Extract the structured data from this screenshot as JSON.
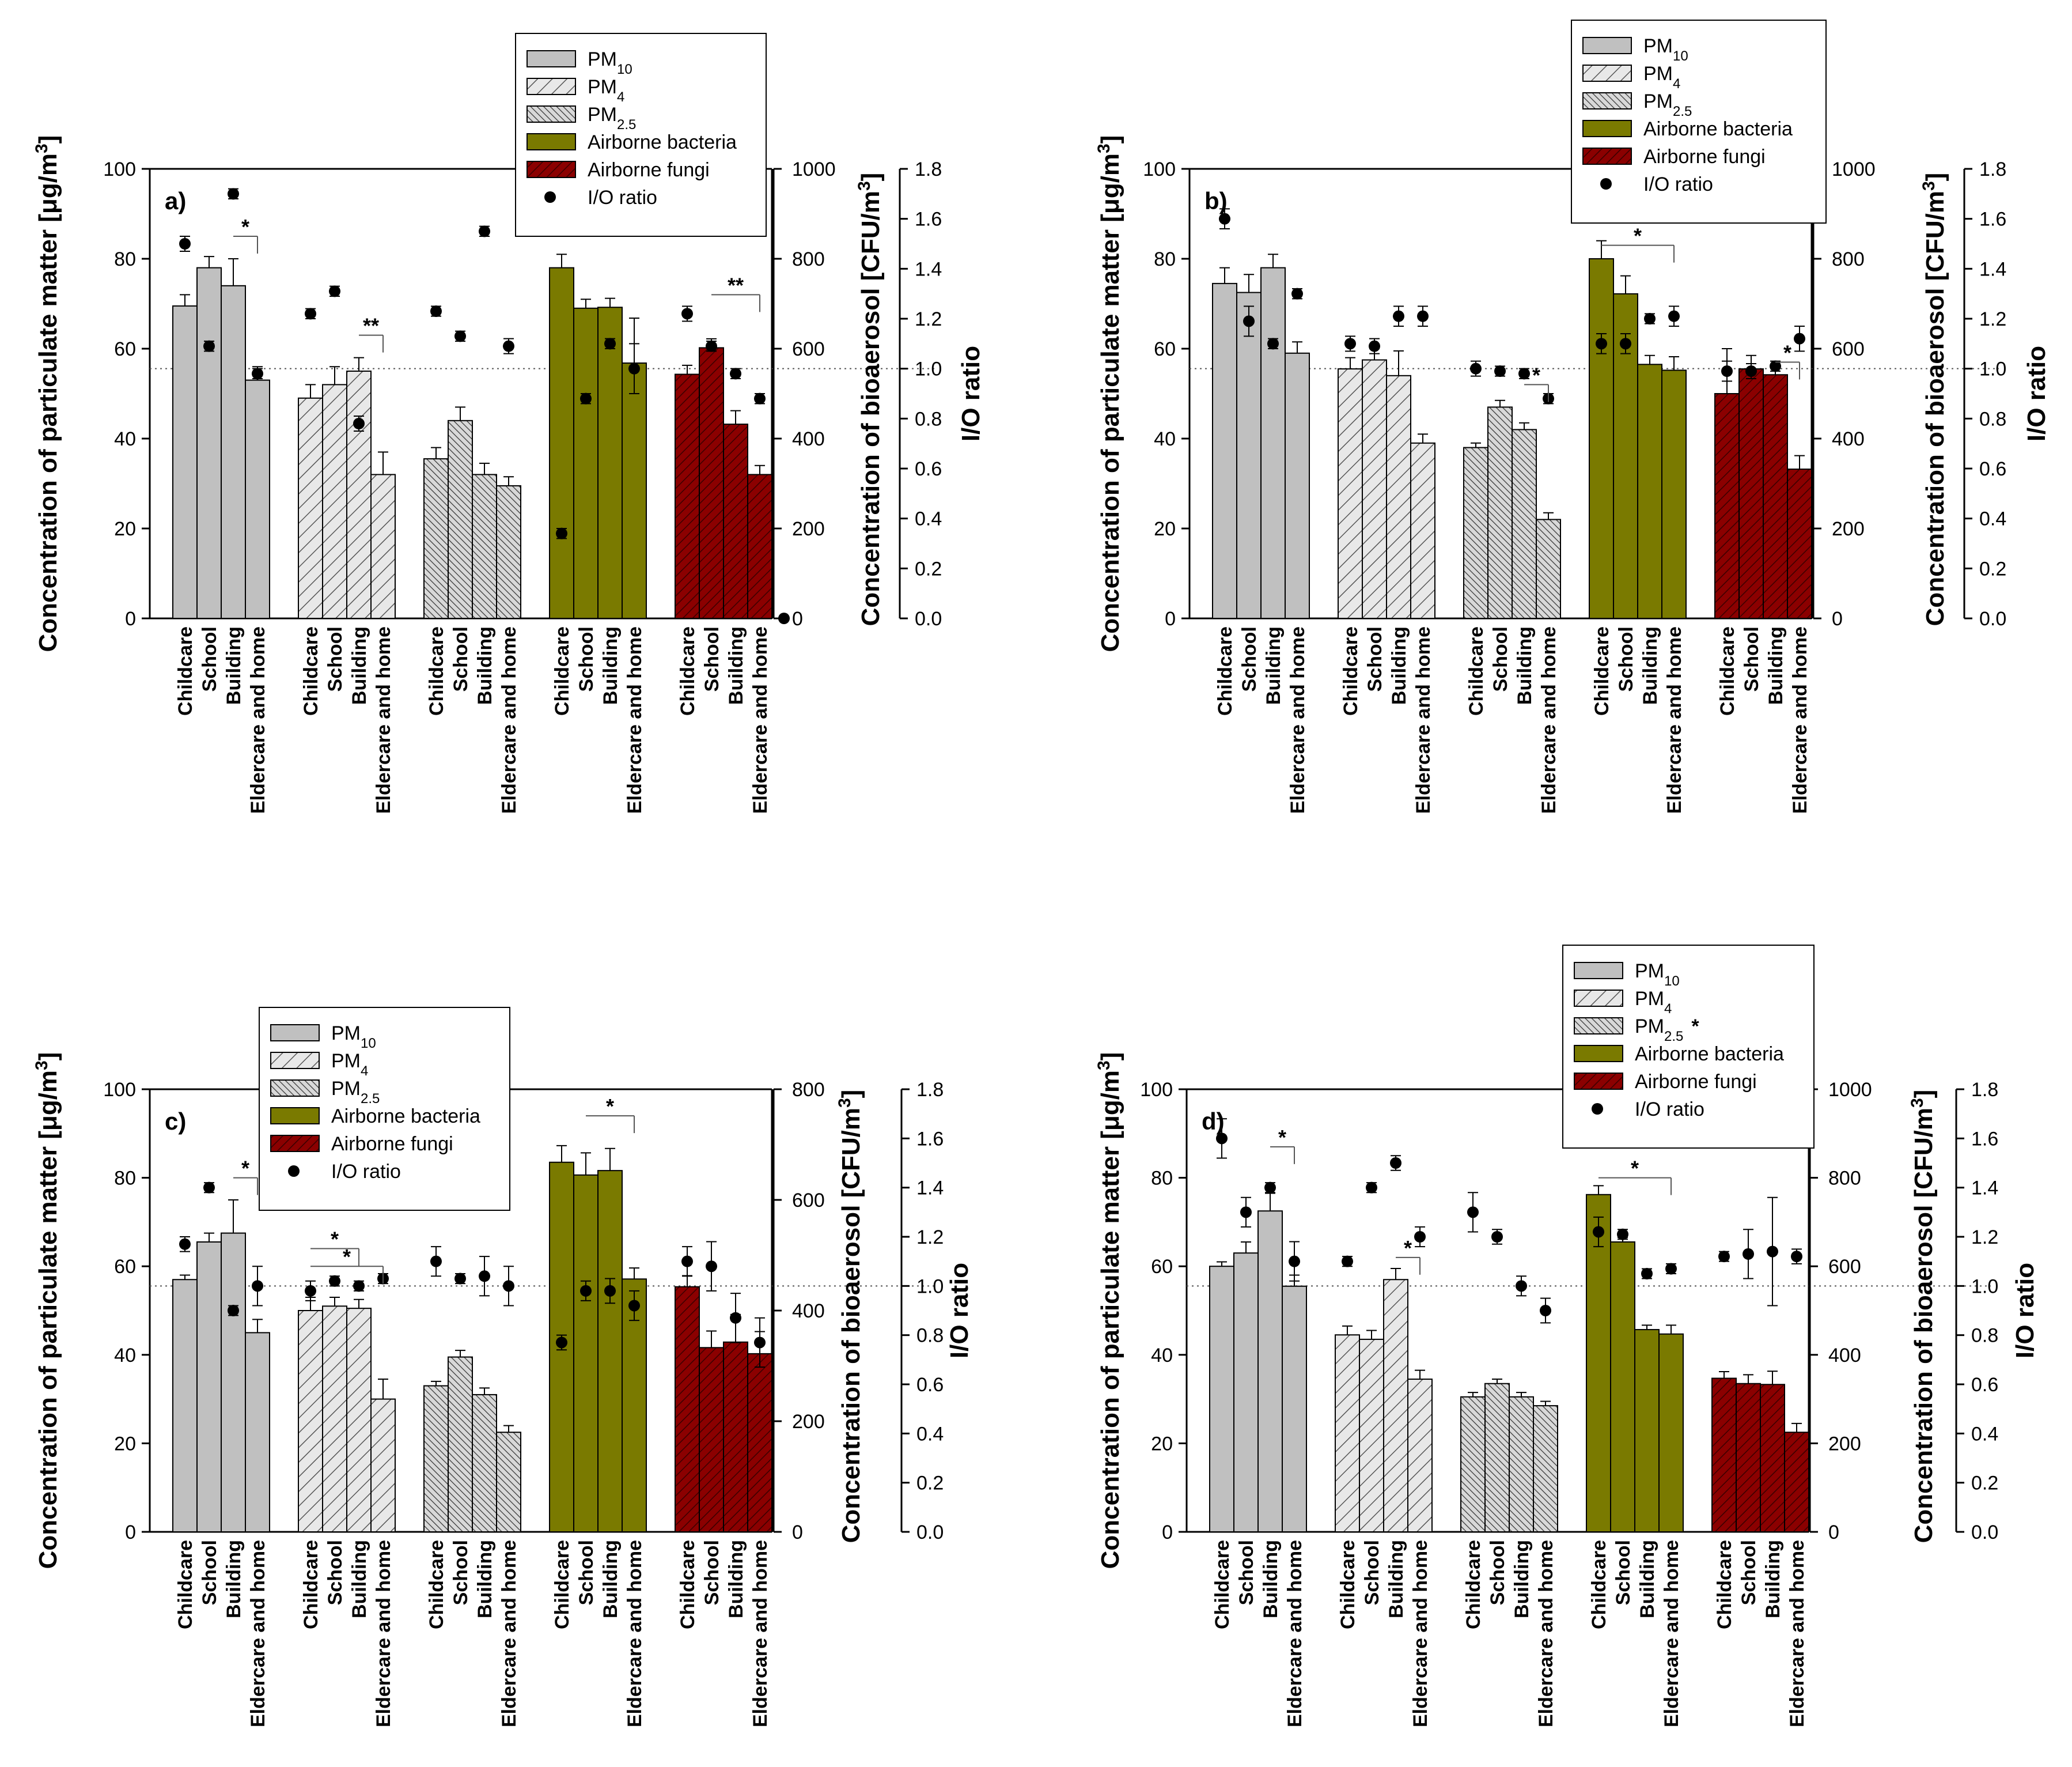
{
  "colors": {
    "pm10": "#c0c0c0",
    "bacteria": "#7a7a00",
    "fungi": "#8b0000",
    "hatch_fill": "#e8e8e8",
    "dot": "#000000"
  },
  "chart_data": [
    {
      "id": "a",
      "type": "bar",
      "panel_label": "a)",
      "categories": [
        "Childcare",
        "School",
        "Building",
        "Eldercare and home"
      ],
      "groups": [
        "PM10",
        "PM4",
        "PM2.5",
        "Airborne bacteria",
        "Airborne fungi"
      ],
      "left_axis": {
        "label_main": "Concentration of particulate matter [",
        "label_mu": "μ",
        "label_rest": "g/m",
        "label_sup": "3",
        "label_end": "]",
        "ticks": [
          "0",
          "20",
          "40",
          "60",
          "80",
          "100"
        ],
        "ylim": [
          0,
          100
        ]
      },
      "mid_axis": {
        "label_main": "Concentration of bioaerosol [CFU/m",
        "label_sup": "3",
        "label_end": "]",
        "ticks": [
          "0",
          "200",
          "400",
          "600",
          "800",
          "1000"
        ],
        "ylim": [
          0,
          1000
        ]
      },
      "right_axis": {
        "label": "I/O ratio",
        "ticks": [
          "0.0",
          "0.2",
          "0.4",
          "0.6",
          "0.8",
          "1.0",
          "1.2",
          "1.4",
          "1.6",
          "1.8"
        ],
        "ylim": [
          0,
          1.8
        ]
      },
      "legend": {
        "position": "top-center",
        "entries": [
          {
            "label": "PM",
            "sub": "10",
            "style": "pm10"
          },
          {
            "label": "PM",
            "sub": "4",
            "style": "pm4"
          },
          {
            "label": "PM",
            "sub": "2.5",
            "style": "pm25"
          },
          {
            "label": "Airborne bacteria",
            "sub": "",
            "style": "bacteria"
          },
          {
            "label": "Airborne fungi",
            "sub": "",
            "style": "fungi"
          },
          {
            "label": "I/O ratio",
            "sub": "",
            "style": "dot"
          }
        ]
      },
      "bars": [
        [
          69.5,
          78,
          74,
          53
        ],
        [
          49,
          52,
          55,
          32
        ],
        [
          35.5,
          44,
          32,
          29.5
        ],
        [
          780,
          690,
          692,
          568
        ],
        [
          543,
          602,
          432,
          320
        ]
      ],
      "errors": [
        [
          2.5,
          2.5,
          6,
          3
        ],
        [
          3,
          4,
          3,
          5
        ],
        [
          2.5,
          3,
          2.5,
          2
        ],
        [
          30,
          20,
          20,
          100
        ],
        [
          20,
          20,
          30,
          20
        ]
      ],
      "ratios": [
        [
          1.5,
          1.09,
          1.7,
          0.98
        ],
        [
          1.22,
          1.31,
          0.78,
          null
        ],
        [
          1.23,
          1.13,
          1.55,
          1.09
        ],
        [
          0.34,
          0.88,
          1.1,
          1.0
        ],
        [
          1.22,
          1.09,
          0.98,
          0.88
        ]
      ],
      "extra_ratios": [
        {
          "group": 4,
          "x_offset": 4.5,
          "value": 0.0
        }
      ],
      "ratio_errors": [
        [
          0.03,
          0.02,
          0.02,
          0.02
        ],
        [
          0.02,
          0.02,
          0.03,
          0.02
        ],
        [
          0.02,
          0.02,
          0.02,
          0.03
        ],
        [
          0.02,
          0.02,
          0.02,
          0.1
        ],
        [
          0.03,
          0.02,
          0.02,
          0.02
        ]
      ],
      "annotations": [
        {
          "text": "*",
          "group": 0,
          "from": 2,
          "to": 3,
          "y": 85
        },
        {
          "text": "**",
          "group": 1,
          "from": 2,
          "to": 3,
          "y": 63
        },
        {
          "text": "**",
          "group": 4,
          "from": 1,
          "to": 3,
          "y": 72
        }
      ]
    },
    {
      "id": "b",
      "type": "bar",
      "panel_label": "b)",
      "categories": [
        "Childcare",
        "School",
        "Building",
        "Eldercare and home"
      ],
      "groups": [
        "PM10",
        "PM4",
        "PM2.5",
        "Airborne bacteria",
        "Airborne fungi"
      ],
      "left_axis": {
        "label_main": "Concentration of particulate matter [",
        "label_mu": "μ",
        "label_rest": "g/m",
        "label_sup": "3",
        "label_end": "]",
        "ticks": [
          "0",
          "20",
          "40",
          "60",
          "80",
          "100"
        ],
        "ylim": [
          0,
          100
        ]
      },
      "mid_axis": {
        "label_main": "Concentration of bioaerosol [CFU/m",
        "label_sup": "3",
        "label_end": "]",
        "ticks": [
          "0",
          "200",
          "400",
          "600",
          "800",
          "1000"
        ],
        "ylim": [
          0,
          1000
        ]
      },
      "right_axis": {
        "label": "I/O ratio",
        "ticks": [
          "0.0",
          "0.2",
          "0.4",
          "0.6",
          "0.8",
          "1.0",
          "1.2",
          "1.4",
          "1.6",
          "1.8"
        ],
        "ylim": [
          0,
          1.8
        ]
      },
      "legend": {
        "position": "top-center",
        "entries": [
          {
            "label": "PM",
            "sub": "10",
            "style": "pm10"
          },
          {
            "label": "PM",
            "sub": "4",
            "style": "pm4"
          },
          {
            "label": "PM",
            "sub": "2.5",
            "style": "pm25"
          },
          {
            "label": "Airborne bacteria",
            "sub": "",
            "style": "bacteria"
          },
          {
            "label": "Airborne fungi",
            "sub": "",
            "style": "fungi"
          },
          {
            "label": "I/O ratio",
            "sub": "",
            "style": "dot"
          }
        ]
      },
      "bars": [
        [
          74.5,
          72.5,
          78,
          59
        ],
        [
          55.5,
          57.5,
          54,
          39
        ],
        [
          38,
          47,
          42,
          22
        ],
        [
          800,
          722,
          565,
          552
        ],
        [
          500,
          555,
          542,
          332
        ]
      ],
      "errors": [
        [
          3.5,
          4,
          3,
          2.5
        ],
        [
          2.5,
          2.5,
          5.5,
          2
        ],
        [
          1,
          1.5,
          1.5,
          1.5
        ],
        [
          40,
          40,
          20,
          30
        ],
        [
          100,
          30,
          20,
          30
        ]
      ],
      "ratios": [
        [
          1.6,
          1.19,
          1.1,
          1.3
        ],
        [
          1.1,
          1.09,
          1.21,
          1.21
        ],
        [
          1.0,
          0.99,
          0.98,
          0.88
        ],
        [
          1.1,
          1.1,
          1.2,
          1.21
        ],
        [
          0.99,
          0.99,
          1.01,
          1.12
        ]
      ],
      "ratio_errors": [
        [
          0.04,
          0.06,
          0.02,
          0.02
        ],
        [
          0.03,
          0.03,
          0.04,
          0.04
        ],
        [
          0.03,
          0.02,
          0.02,
          0.02
        ],
        [
          0.04,
          0.04,
          0.02,
          0.04
        ],
        [
          0.04,
          0.03,
          0.02,
          0.05
        ]
      ],
      "annotations": [
        {
          "text": "*",
          "group": 3,
          "from": 0,
          "to": 3,
          "y": 83
        },
        {
          "text": "*",
          "group": 2,
          "from": 2,
          "to": 3,
          "y": 52
        },
        {
          "text": "*",
          "group": 4,
          "from": 2,
          "to": 3,
          "y": 57
        }
      ]
    },
    {
      "id": "c",
      "type": "bar",
      "panel_label": "c)",
      "categories": [
        "Childcare",
        "School",
        "Building",
        "Eldercare and home"
      ],
      "groups": [
        "PM10",
        "PM4",
        "PM2.5",
        "Airborne bacteria",
        "Airborne fungi"
      ],
      "left_axis": {
        "label_main": "Concentration of particulate matter [",
        "label_mu": "μ",
        "label_rest": "g/m",
        "label_sup": "3",
        "label_end": "]",
        "ticks": [
          "0",
          "20",
          "40",
          "60",
          "80",
          "100"
        ],
        "ylim": [
          0,
          100
        ]
      },
      "mid_axis": {
        "label_main": "Concentration of bioaerosol [CFU/m",
        "label_sup": "3",
        "label_end": "]",
        "ticks": [
          "0",
          "200",
          "400",
          "600",
          "800"
        ],
        "ylim": [
          0,
          800
        ]
      },
      "right_axis": {
        "label": "I/O ratio",
        "ticks": [
          "0.0",
          "0.2",
          "0.4",
          "0.6",
          "0.8",
          "1.0",
          "1.2",
          "1.4",
          "1.6",
          "1.8"
        ],
        "ylim": [
          0,
          1.8
        ]
      },
      "legend": {
        "position": "top-center",
        "entries": [
          {
            "label": "PM",
            "sub": "10",
            "style": "pm10"
          },
          {
            "label": "PM",
            "sub": "4",
            "style": "pm4"
          },
          {
            "label": "PM",
            "sub": "2.5",
            "style": "pm25"
          },
          {
            "label": "Airborne bacteria",
            "sub": "",
            "style": "bacteria"
          },
          {
            "label": "Airborne fungi",
            "sub": "",
            "style": "fungi"
          },
          {
            "label": "I/O ratio",
            "sub": "",
            "style": "dot"
          }
        ]
      },
      "bars": [
        [
          57,
          65.5,
          67.5,
          45
        ],
        [
          50,
          51,
          50.5,
          30
        ],
        [
          33,
          39.5,
          31,
          22.5
        ],
        [
          668,
          645,
          653,
          457
        ],
        [
          443,
          333,
          343,
          322
        ]
      ],
      "errors": [
        [
          1,
          2,
          7.5,
          3
        ],
        [
          3,
          2,
          2,
          4.5
        ],
        [
          1,
          1.5,
          1.5,
          1.5
        ],
        [
          30,
          40,
          40,
          20
        ],
        [
          20,
          30,
          50,
          40
        ]
      ],
      "ratios": [
        [
          1.17,
          1.4,
          0.9,
          1.0
        ],
        [
          0.98,
          1.02,
          1.0,
          1.03
        ],
        [
          1.1,
          1.03,
          1.04,
          1.0
        ],
        [
          0.77,
          0.98,
          0.98,
          0.92
        ],
        [
          1.1,
          1.08,
          0.87,
          0.77
        ]
      ],
      "ratio_errors": [
        [
          0.03,
          0.02,
          0.02,
          0.08
        ],
        [
          0.04,
          0.02,
          0.02,
          0.02
        ],
        [
          0.06,
          0.02,
          0.08,
          0.08
        ],
        [
          0.03,
          0.04,
          0.05,
          0.06
        ],
        [
          0.06,
          0.1,
          0.1,
          0.1
        ]
      ],
      "annotations": [
        {
          "text": "*",
          "group": 0,
          "from": 2,
          "to": 3,
          "y": 80
        },
        {
          "text": "*",
          "group": 1,
          "from": 0,
          "to": 2,
          "y": 64
        },
        {
          "text": "*",
          "group": 1,
          "from": 0,
          "to": 3,
          "y": 60
        },
        {
          "text": "*",
          "group": 3,
          "from": 1,
          "to": 3,
          "y": 94
        }
      ]
    },
    {
      "id": "d",
      "type": "bar",
      "panel_label": "d)",
      "categories": [
        "Childcare",
        "School",
        "Building",
        "Eldercare and home"
      ],
      "groups": [
        "PM10",
        "PM4",
        "PM2.5",
        "Airborne bacteria",
        "Airborne fungi"
      ],
      "left_axis": {
        "label_main": "Concentration of particulate matter [",
        "label_mu": "μ",
        "label_rest": "g/m",
        "label_sup": "3",
        "label_end": "]",
        "ticks": [
          "0",
          "20",
          "40",
          "60",
          "80",
          "100"
        ],
        "ylim": [
          0,
          100
        ]
      },
      "mid_axis": {
        "label_main": "Concentration of bioaerosol [CFU/m",
        "label_sup": "3",
        "label_end": "]",
        "ticks": [
          "0",
          "200",
          "400",
          "600",
          "800",
          "1000"
        ],
        "ylim": [
          0,
          1000
        ]
      },
      "right_axis": {
        "label": "I/O ratio",
        "ticks": [
          "0.0",
          "0.2",
          "0.4",
          "0.6",
          "0.8",
          "1.0",
          "1.2",
          "1.4",
          "1.6",
          "1.8"
        ],
        "ylim": [
          0,
          1.8
        ]
      },
      "legend": {
        "position": "top-center",
        "entries": [
          {
            "label": "PM",
            "sub": "10",
            "style": "pm10"
          },
          {
            "label": "PM",
            "sub": "4",
            "style": "pm4"
          },
          {
            "label": "PM",
            "sub": "2.5",
            "style": "pm25"
          },
          {
            "label": "Airborne bacteria",
            "sub": "",
            "style": "bacteria"
          },
          {
            "label": "Airborne fungi",
            "sub": "",
            "style": "fungi"
          },
          {
            "label": "I/O ratio",
            "sub": "",
            "style": "dot"
          }
        ],
        "marker": "*"
      },
      "bars": [
        [
          60,
          63,
          72.5,
          55.5
        ],
        [
          44.5,
          43.5,
          57,
          34.5
        ],
        [
          30.5,
          33.5,
          30.5,
          28.5
        ],
        [
          762,
          655,
          457,
          447
        ],
        [
          347,
          335,
          333,
          225
        ]
      ],
      "errors": [
        [
          1,
          2.5,
          4,
          2.5
        ],
        [
          2,
          2,
          2.5,
          2
        ],
        [
          1,
          1,
          1,
          1
        ],
        [
          20,
          10,
          10,
          20
        ],
        [
          15,
          20,
          30,
          20
        ]
      ],
      "ratios": [
        [
          1.6,
          1.3,
          1.4,
          1.1
        ],
        [
          1.1,
          1.4,
          1.5,
          1.2
        ],
        [
          1.3,
          1.2,
          1.0,
          0.9
        ],
        [
          1.22,
          1.21,
          1.05,
          1.07
        ],
        [
          1.12,
          1.13,
          1.14,
          1.12
        ]
      ],
      "ratio_errors": [
        [
          0.08,
          0.06,
          0.02,
          0.08
        ],
        [
          0.02,
          0.02,
          0.03,
          0.04
        ],
        [
          0.08,
          0.03,
          0.04,
          0.05
        ],
        [
          0.06,
          0.02,
          0.02,
          0.02
        ],
        [
          0.02,
          0.1,
          0.22,
          0.03
        ]
      ],
      "annotations": [
        {
          "text": "*",
          "group": 0,
          "from": 2,
          "to": 3,
          "y": 87
        },
        {
          "text": "*",
          "group": 1,
          "from": 2,
          "to": 3,
          "y": 62
        },
        {
          "text": "*",
          "group": 3,
          "from": 0,
          "to": 3,
          "y": 80
        }
      ]
    }
  ]
}
